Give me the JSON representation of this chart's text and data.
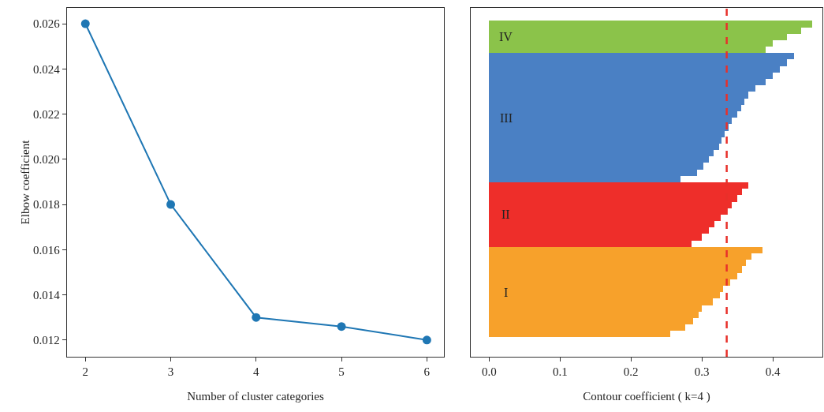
{
  "chart_data": [
    {
      "type": "line",
      "xlabel": "Number of cluster categories",
      "ylabel": "Elbow coefficient",
      "x": [
        2,
        3,
        4,
        5,
        6
      ],
      "series": [
        {
          "color": "#1f77b4",
          "values": [
            0.026,
            0.018,
            0.013,
            0.0126,
            0.012
          ]
        }
      ],
      "xlim": [
        1.785,
        6.2
      ],
      "xticks": [
        2,
        3,
        4,
        5,
        6
      ],
      "ylim": [
        0.01126,
        0.0267
      ],
      "yticks": [
        {
          "value": 0.012,
          "label": "0.012"
        },
        {
          "value": 0.014,
          "label": "0.014"
        },
        {
          "value": 0.016,
          "label": "0.016"
        },
        {
          "value": 0.018,
          "label": "0.018"
        },
        {
          "value": 0.02,
          "label": "0.020"
        },
        {
          "value": 0.022,
          "label": "0.022"
        },
        {
          "value": 0.024,
          "label": "0.024"
        },
        {
          "value": 0.026,
          "label": "0.026"
        }
      ],
      "marker": "circle",
      "line_style": "solid",
      "grid": false,
      "legend": false
    },
    {
      "type": "bar",
      "orientation": "horizontal",
      "xlabel": "Contour coefficient ( k=4 )",
      "categories": [
        null,
        null,
        null,
        null,
        null,
        null,
        null,
        null,
        null,
        null,
        null,
        null,
        null,
        null,
        null,
        null,
        null,
        null,
        null,
        null,
        null,
        null,
        null,
        null,
        null,
        null,
        null,
        null,
        null,
        null,
        null,
        null,
        null,
        null,
        null,
        null,
        null,
        null,
        null,
        null,
        null,
        null,
        null,
        null,
        null,
        null,
        null,
        null,
        null,
        null,
        null,
        null,
        null,
        null
      ],
      "series": [
        {
          "name": "IV",
          "color": "#8bc34a",
          "values": [
            null,
            null,
            0.455,
            0.44,
            0.42,
            0.4,
            0.39,
            null,
            null,
            null,
            null,
            null,
            null,
            null,
            null,
            null,
            null,
            null,
            null,
            null,
            null,
            null,
            null,
            null,
            null,
            null,
            null,
            null,
            null,
            null,
            null,
            null,
            null,
            null,
            null,
            null,
            null,
            null,
            null,
            null,
            null,
            null,
            null,
            null,
            null,
            null,
            null,
            null,
            null,
            null,
            null,
            null,
            null,
            null
          ]
        },
        {
          "name": "III",
          "color": "#4a80c4",
          "values": [
            null,
            null,
            null,
            null,
            null,
            null,
            null,
            0.43,
            0.42,
            0.41,
            0.4,
            0.39,
            0.375,
            0.366,
            0.36,
            0.355,
            0.35,
            0.342,
            0.338,
            0.332,
            0.328,
            0.324,
            0.317,
            0.31,
            0.302,
            0.293,
            0.27,
            null,
            null,
            null,
            null,
            null,
            null,
            null,
            null,
            null,
            null,
            null,
            null,
            null,
            null,
            null,
            null,
            null,
            null,
            null,
            null,
            null,
            null,
            null,
            null,
            null,
            null,
            null
          ]
        },
        {
          "name": "II",
          "color": "#ee2e2a",
          "values": [
            null,
            null,
            null,
            null,
            null,
            null,
            null,
            null,
            null,
            null,
            null,
            null,
            null,
            null,
            null,
            null,
            null,
            null,
            null,
            null,
            null,
            null,
            null,
            null,
            null,
            null,
            null,
            0.365,
            0.357,
            0.35,
            0.342,
            0.335,
            0.327,
            0.318,
            0.31,
            0.3,
            0.285,
            null,
            null,
            null,
            null,
            null,
            null,
            null,
            null,
            null,
            null,
            null,
            null,
            null,
            null,
            null,
            null,
            null
          ]
        },
        {
          "name": "I",
          "color": "#f7a12b",
          "values": [
            null,
            null,
            null,
            null,
            null,
            null,
            null,
            null,
            null,
            null,
            null,
            null,
            null,
            null,
            null,
            null,
            null,
            null,
            null,
            null,
            null,
            null,
            null,
            null,
            null,
            null,
            null,
            null,
            null,
            null,
            null,
            null,
            null,
            null,
            null,
            null,
            null,
            0.385,
            0.37,
            0.362,
            0.357,
            0.35,
            0.34,
            0.33,
            0.325,
            0.315,
            0.3,
            0.295,
            0.288,
            0.276,
            0.255,
            null,
            null,
            null
          ]
        }
      ],
      "xlim": [
        -0.026,
        0.47
      ],
      "xticks": [
        {
          "value": 0,
          "label": "0.0"
        },
        {
          "value": 0.1,
          "label": "0.1"
        },
        {
          "value": 0.2,
          "label": "0.2"
        },
        {
          "value": 0.3,
          "label": "0.3"
        },
        {
          "value": 0.4,
          "label": "0.4"
        }
      ],
      "ref_lines": [
        {
          "axis": "x",
          "value": 0.335,
          "color": "#e8302a",
          "line_style": "dashed"
        }
      ],
      "tick_labels": "x",
      "grid": false,
      "legend": false
    }
  ]
}
